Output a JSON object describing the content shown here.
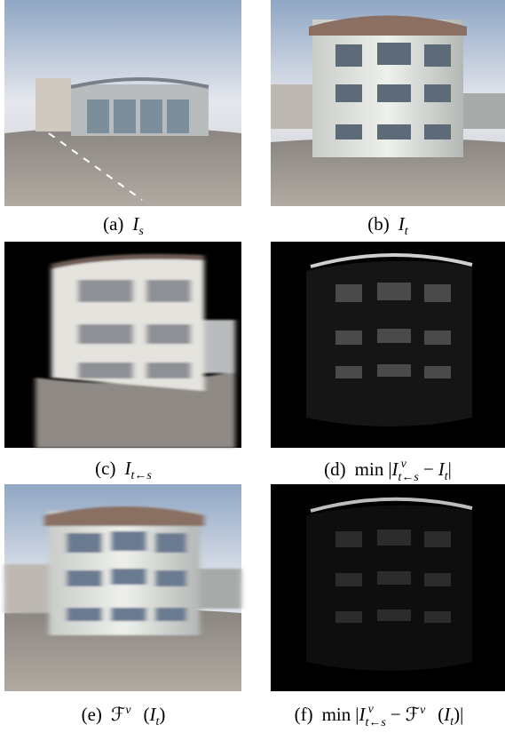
{
  "panels": [
    {
      "caption": [
        "(a)",
        "I",
        "s"
      ]
    },
    {
      "caption": [
        "(b)",
        "I",
        "t"
      ]
    },
    {
      "caption": [
        "(c)",
        "I",
        "t←s"
      ]
    },
    {
      "caption": [
        "(d)",
        "min",
        "|",
        "I",
        "v⃗",
        "t←s",
        "−",
        "I",
        "t",
        "|"
      ]
    },
    {
      "caption": [
        "(e)",
        "ℱ",
        "v⃗",
        "(",
        "I",
        "t",
        ")"
      ]
    },
    {
      "caption": [
        "(f)",
        "min",
        "|",
        "I",
        "v⃗",
        "t←s",
        "−",
        "ℱ",
        "v⃗",
        "(",
        "I",
        "t",
        ")",
        "|"
      ]
    }
  ]
}
